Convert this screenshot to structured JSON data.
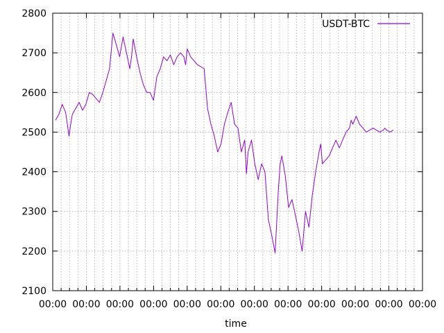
{
  "chart_data": {
    "type": "line",
    "title": "",
    "xlabel": "time",
    "ylabel": "",
    "ylim": [
      2100,
      2800
    ],
    "y_ticks": [
      2100,
      2200,
      2300,
      2400,
      2500,
      2600,
      2700,
      2800
    ],
    "x_tick_labels": [
      "00:00",
      "00:00",
      "00:00",
      "00:00",
      "00:00",
      "00:00",
      "00:00",
      "00:00",
      "00:00",
      "00:00",
      "00:00",
      "00:00"
    ],
    "grid": true,
    "legend_position": "top-right",
    "series": [
      {
        "name": "USDT-BTC",
        "color": "#9400d3",
        "x": [
          0.0,
          0.01,
          0.02,
          0.03,
          0.04,
          0.045,
          0.05,
          0.06,
          0.07,
          0.08,
          0.09,
          0.1,
          0.11,
          0.12,
          0.13,
          0.14,
          0.15,
          0.16,
          0.17,
          0.18,
          0.19,
          0.2,
          0.21,
          0.22,
          0.225,
          0.23,
          0.24,
          0.25,
          0.26,
          0.27,
          0.28,
          0.29,
          0.3,
          0.31,
          0.32,
          0.33,
          0.34,
          0.35,
          0.36,
          0.37,
          0.38,
          0.385,
          0.39,
          0.4,
          0.41,
          0.42,
          0.43,
          0.44,
          0.45,
          0.46,
          0.47,
          0.48,
          0.49,
          0.5,
          0.51,
          0.52,
          0.53,
          0.54,
          0.55,
          0.56,
          0.565,
          0.57,
          0.58,
          0.59,
          0.6,
          0.61,
          0.62,
          0.63,
          0.64,
          0.65,
          0.66,
          0.665,
          0.67,
          0.68,
          0.69,
          0.7,
          0.71,
          0.72,
          0.73,
          0.74,
          0.75,
          0.76,
          0.77,
          0.78,
          0.785,
          0.79,
          0.8,
          0.81,
          0.82,
          0.83,
          0.835,
          0.84,
          0.85,
          0.86,
          0.87,
          0.875,
          0.88,
          0.89,
          0.9,
          0.91,
          0.92,
          0.93,
          0.94,
          0.95,
          0.96,
          0.97,
          0.975,
          0.98,
          0.99,
          1.0
        ],
        "values": [
          2530,
          2545,
          2570,
          2550,
          2490,
          2520,
          2545,
          2560,
          2575,
          2555,
          2570,
          2600,
          2595,
          2585,
          2575,
          2600,
          2630,
          2660,
          2750,
          2720,
          2690,
          2740,
          2700,
          2660,
          2690,
          2735,
          2690,
          2650,
          2620,
          2600,
          2600,
          2580,
          2640,
          2660,
          2690,
          2680,
          2695,
          2670,
          2690,
          2700,
          2690,
          2670,
          2710,
          2690,
          2680,
          2670,
          2665,
          2660,
          2560,
          2520,
          2490,
          2450,
          2470,
          2520,
          2550,
          2575,
          2520,
          2510,
          2450,
          2480,
          2395,
          2450,
          2480,
          2420,
          2380,
          2420,
          2400,
          2280,
          2240,
          2195,
          2360,
          2420,
          2440,
          2390,
          2310,
          2330,
          2290,
          2250,
          2200,
          2300,
          2260,
          2340,
          2400,
          2450,
          2470,
          2420,
          2430,
          2440,
          2460,
          2480,
          2470,
          2460,
          2480,
          2500,
          2510,
          2530,
          2520,
          2540,
          2520,
          2510,
          2500,
          2505,
          2510,
          2505,
          2500,
          2505,
          2510,
          2505,
          2500,
          2505
        ]
      }
    ]
  }
}
